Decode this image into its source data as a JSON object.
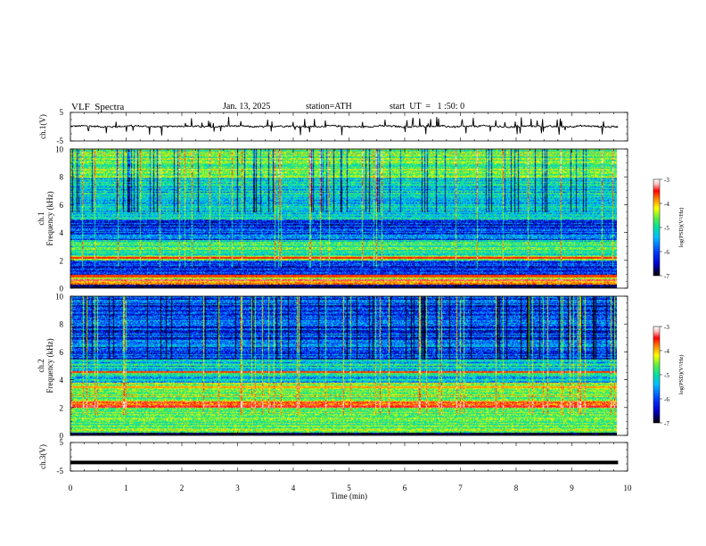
{
  "header": {
    "title": "VLF  Spectra",
    "date": "Jan. 13, 2025",
    "station": "station=ATH",
    "start": "start  UT  =   1 :50: 0"
  },
  "colors": {
    "line": "#000000",
    "colormap": [
      "#000000",
      "#0000c8",
      "#0040ff",
      "#00c0ff",
      "#00e0a0",
      "#60f040",
      "#ffff00",
      "#ff8000",
      "#ff0000",
      "#ffc0c0",
      "#ffffff"
    ]
  },
  "chart_data": [
    {
      "type": "line",
      "panel": "ch.1 waveform",
      "ylabel": "ch.1(V)",
      "ylim": [
        -5,
        5
      ],
      "yticks": [
        "5",
        "-5"
      ],
      "xlim": [
        0,
        10
      ],
      "series": [
        {
          "level_V": 0.1,
          "noise_V": 1.0,
          "spikes": true
        }
      ]
    },
    {
      "type": "heatmap",
      "panel": "ch.1 spectrogram",
      "ylabel": [
        "ch.1",
        "Frequency  (kHz)"
      ],
      "ylim": [
        0,
        10
      ],
      "yticks": [
        "10",
        "8",
        "6",
        "4",
        "2",
        "0"
      ],
      "xlim": [
        0,
        9.8
      ],
      "colorbar": {
        "label": "log(PSD)(V²/Hz)",
        "range": [
          -7,
          -3
        ],
        "ticks": [
          "-3",
          "-4",
          "-5",
          "-6",
          "-7"
        ]
      },
      "bands_khz": [
        {
          "from": 0,
          "to": 0.3,
          "logpsd": -7
        },
        {
          "from": 0.3,
          "to": 1.0,
          "logpsd": -4.5
        },
        {
          "from": 1.0,
          "to": 2.0,
          "logpsd": -6.3
        },
        {
          "from": 2.0,
          "to": 2.4,
          "logpsd": -4.8
        },
        {
          "from": 2.4,
          "to": 3.5,
          "logpsd": -5.3
        },
        {
          "from": 3.5,
          "to": 5.0,
          "logpsd": -6.2
        },
        {
          "from": 5.0,
          "to": 8.0,
          "logpsd": -5.6
        },
        {
          "from": 8.0,
          "to": 10.0,
          "logpsd": -5.0
        }
      ],
      "lines_khz": [
        {
          "f": 2.2,
          "logpsd": -3.8
        },
        {
          "f": 0.6,
          "logpsd": -3.6
        },
        {
          "f": 0.9,
          "logpsd": -4.0
        }
      ]
    },
    {
      "type": "heatmap",
      "panel": "ch.2 spectrogram",
      "ylabel": [
        "ch.2",
        "Frequency  (kHz)"
      ],
      "ylim": [
        0,
        10
      ],
      "yticks": [
        "10",
        "8",
        "6",
        "4",
        "2",
        "0"
      ],
      "xlim": [
        0,
        9.8
      ],
      "colorbar": {
        "label": "log(PSD)(V²/Hz)",
        "range": [
          -7,
          -3
        ],
        "ticks": [
          "-3",
          "-4",
          "-5",
          "-6",
          "-7"
        ]
      },
      "bands_khz": [
        {
          "from": 0,
          "to": 0.2,
          "logpsd": -7
        },
        {
          "from": 0.2,
          "to": 2.0,
          "logpsd": -5.0
        },
        {
          "from": 2.0,
          "to": 2.5,
          "logpsd": -4.2
        },
        {
          "from": 2.5,
          "to": 3.8,
          "logpsd": -4.9
        },
        {
          "from": 3.8,
          "to": 5.5,
          "logpsd": -5.6
        },
        {
          "from": 5.5,
          "to": 10.0,
          "logpsd": -6.2
        }
      ],
      "lines_khz": [
        {
          "f": 2.1,
          "logpsd": -3.7
        },
        {
          "f": 4.6,
          "logpsd": -4.0
        },
        {
          "f": 3.5,
          "logpsd": -4.3
        }
      ]
    },
    {
      "type": "line",
      "panel": "ch.3 waveform",
      "ylabel": "ch.3(V)",
      "ylim": [
        -5,
        5
      ],
      "yticks": [
        "5",
        "-5"
      ],
      "xlim": [
        0,
        10
      ],
      "xlabel": "Time  (min)",
      "xticks": [
        "0",
        "1",
        "2",
        "3",
        "4",
        "5",
        "6",
        "7",
        "8",
        "9",
        "10"
      ],
      "series": [
        {
          "level_V": -2.0
        }
      ]
    }
  ]
}
